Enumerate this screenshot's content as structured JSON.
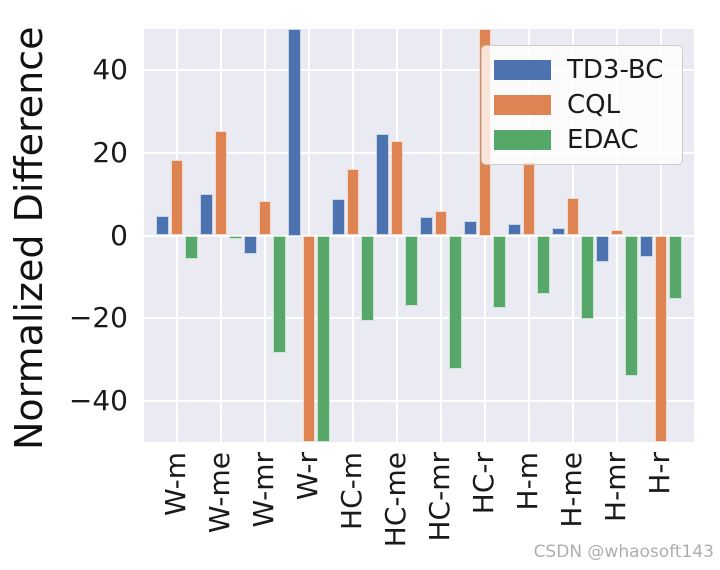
{
  "watermark": "CSDN @whaosoft143",
  "colors": {
    "plot_background": "#eaeaf2",
    "gridline": "#ffffff",
    "text": "#1a1a1a",
    "watermark_text": "#aeaeae",
    "legend_background": "rgba(255,255,255,0.78)",
    "legend_border": "#cccccc"
  },
  "chart_data": {
    "type": "bar",
    "title": "",
    "xlabel": "",
    "ylabel": "Normalized Difference",
    "categories": [
      "W-m",
      "W-me",
      "W-mr",
      "W-r",
      "HC-m",
      "HC-me",
      "HC-mr",
      "HC-r",
      "H-m",
      "H-me",
      "H-mr",
      "H-r"
    ],
    "series": [
      {
        "name": "TD3-BC",
        "color": "#4c72b0",
        "values": [
          4.7,
          10.1,
          -4.6,
          55,
          8.8,
          24.5,
          4.6,
          3.4,
          2.8,
          1.9,
          -6.3,
          -5.2
        ]
      },
      {
        "name": "CQL",
        "color": "#dd8452",
        "values": [
          18.4,
          25.4,
          8.3,
          -55,
          16.0,
          23.0,
          6.0,
          55,
          17.7,
          9.2,
          1.4,
          -55
        ]
      },
      {
        "name": "EDAC",
        "color": "#55a868",
        "values": [
          -5.6,
          -0.9,
          -28.5,
          -55,
          -20.6,
          -17.0,
          -32.4,
          -17.6,
          -14.1,
          -20.2,
          -34.1,
          -15.4
        ]
      }
    ],
    "ylim": [
      -50,
      50
    ],
    "yticks": [
      -40,
      -20,
      0,
      20,
      40
    ],
    "grid": true,
    "legend_position": "upper right",
    "clip_to_ylim": true
  }
}
